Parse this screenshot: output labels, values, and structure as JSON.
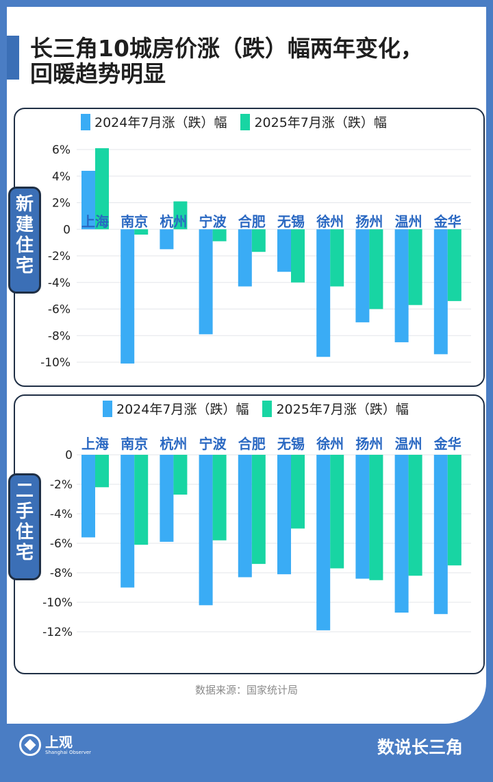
{
  "header": {
    "title_line1": "长三角10城房价涨（跌）幅两年变化，",
    "title_line2": "回暖趋势明显"
  },
  "colors": {
    "series1": "#3aacf5",
    "series2": "#18d5a3",
    "city_label": "#2a68c2",
    "accent": "#3b6fb6"
  },
  "chart_data": [
    {
      "type": "bar",
      "panel_label": "新建住宅",
      "categories": [
        "上海",
        "南京",
        "杭州",
        "宁波",
        "合肥",
        "无锡",
        "徐州",
        "扬州",
        "温州",
        "金华"
      ],
      "series": [
        {
          "name": "2024年7月涨（跌）幅",
          "values": [
            4.4,
            -10.1,
            -1.5,
            -7.9,
            -4.3,
            -3.2,
            -9.6,
            -7.0,
            -8.5,
            -9.4
          ]
        },
        {
          "name": "2025年7月涨（跌）幅",
          "values": [
            6.1,
            -0.4,
            2.1,
            -0.9,
            -1.7,
            -4.0,
            -4.3,
            -6.0,
            -5.7,
            -5.4
          ]
        }
      ],
      "yticks": [
        "6%",
        "4%",
        "2%",
        "0",
        "-2%",
        "-4%",
        "-6%",
        "-8%",
        "-10%"
      ],
      "ylim": [
        -10,
        6
      ],
      "legend": "top"
    },
    {
      "type": "bar",
      "panel_label": "二手住宅",
      "categories": [
        "上海",
        "南京",
        "杭州",
        "宁波",
        "合肥",
        "无锡",
        "徐州",
        "扬州",
        "温州",
        "金华"
      ],
      "series": [
        {
          "name": "2024年7月涨（跌）幅",
          "values": [
            -5.6,
            -9.0,
            -5.9,
            -10.2,
            -8.3,
            -8.1,
            -11.9,
            -8.4,
            -10.7,
            -10.8
          ]
        },
        {
          "name": "2025年7月涨（跌）幅",
          "values": [
            -2.2,
            -6.1,
            -2.7,
            -5.8,
            -7.4,
            -5.0,
            -7.7,
            -8.5,
            -8.2,
            -7.5
          ]
        }
      ],
      "yticks": [
        "0",
        "-2%",
        "-4%",
        "-6%",
        "-8%",
        "-10%",
        "-12%"
      ],
      "ylim": [
        -12,
        0
      ],
      "legend": "top"
    }
  ],
  "footer": {
    "source": "数据来源：国家统计局",
    "logo_cn": "上观",
    "logo_en": "Shanghai Observer",
    "brand": "数说长三角"
  }
}
